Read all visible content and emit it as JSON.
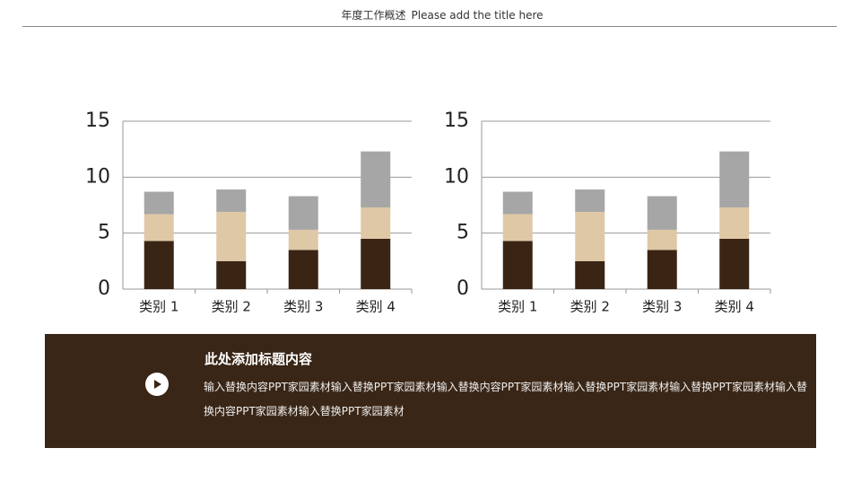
{
  "header": {
    "title": "年度工作概述",
    "subtitle": "Please add the title here"
  },
  "panel": {
    "title": "此处添加标题内容",
    "body": "输入替换内容PPT家园素材输入替换PPT家园素材输入替换内容PPT家园素材输入替换PPT家园素材输入替换PPT家园素材输入替换内容PPT家园素材输入替换PPT家园素材"
  },
  "chart_data": [
    {
      "type": "stacked-bar",
      "categories": [
        "类别 1",
        "类别 2",
        "类别 3",
        "类别 4"
      ],
      "series": [
        {
          "color": "#3a2414",
          "values": [
            4.3,
            2.5,
            3.5,
            4.5
          ]
        },
        {
          "color": "#dfc8a6",
          "values": [
            2.4,
            4.4,
            1.8,
            2.8
          ]
        },
        {
          "color": "#a6a6a6",
          "values": [
            2,
            2,
            3,
            5
          ]
        }
      ],
      "ylim": [
        0,
        15
      ],
      "yticks": [
        0,
        5,
        10,
        15
      ],
      "grid": true
    },
    {
      "type": "stacked-bar",
      "categories": [
        "类别 1",
        "类别 2",
        "类别 3",
        "类别 4"
      ],
      "series": [
        {
          "color": "#3a2414",
          "values": [
            4.3,
            2.5,
            3.5,
            4.5
          ]
        },
        {
          "color": "#dfc8a6",
          "values": [
            2.4,
            4.4,
            1.8,
            2.8
          ]
        },
        {
          "color": "#a6a6a6",
          "values": [
            2,
            2,
            3,
            5
          ]
        }
      ],
      "ylim": [
        0,
        15
      ],
      "yticks": [
        0,
        5,
        10,
        15
      ],
      "grid": true
    }
  ]
}
